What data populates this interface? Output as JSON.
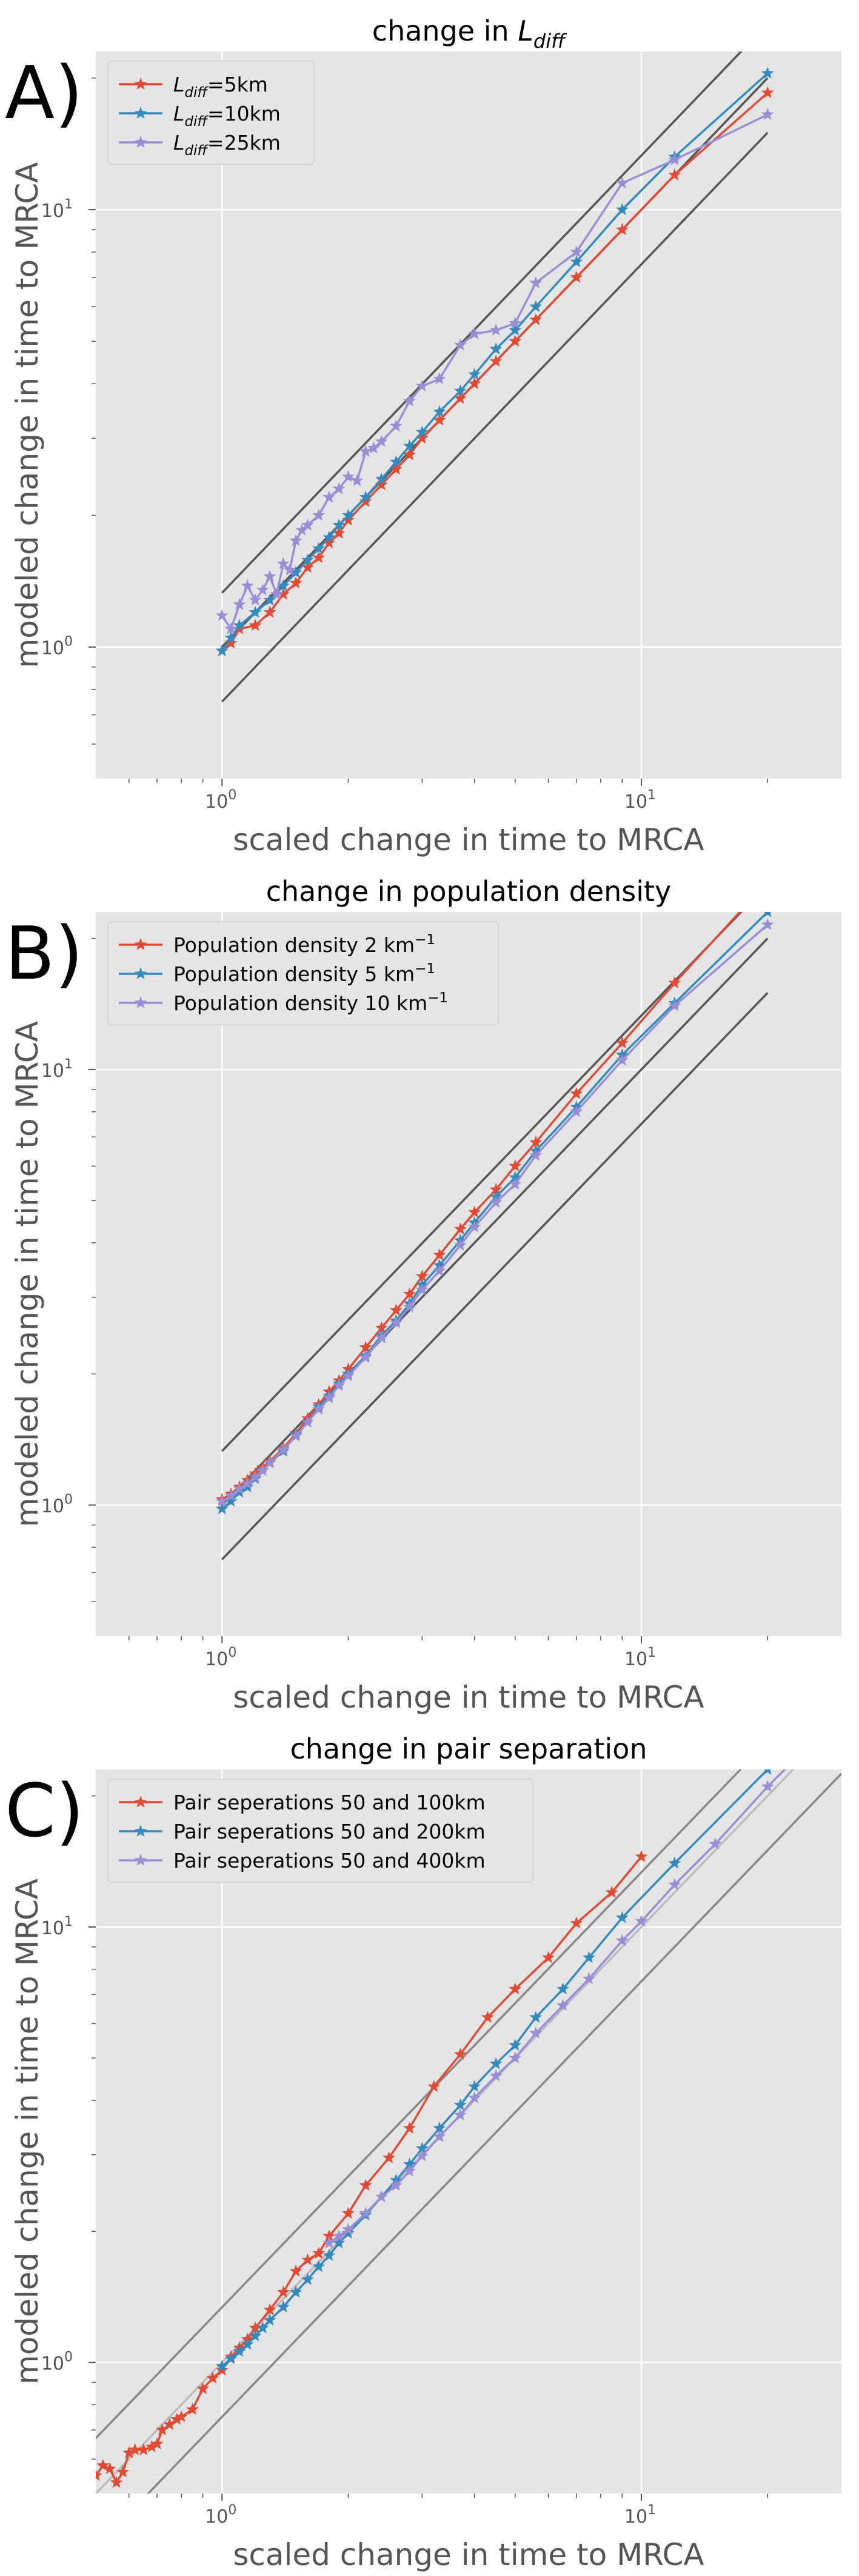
{
  "chart_data": [
    {
      "type": "line",
      "panel_label": "A)",
      "title_base": "change in ",
      "title_math": {
        "main": "L",
        "sub": "diff"
      },
      "xlabel": "scaled change in time to MRCA",
      "ylabel": "modeled change in time to MRCA",
      "xscale": "log",
      "yscale": "log",
      "xlim": [
        0.5,
        30
      ],
      "ylim": [
        0.5,
        23
      ],
      "grid": true,
      "legend_position": "top-left",
      "reference_lines": [
        {
          "x": [
            1,
            20
          ],
          "y": [
            1.33,
            26.6
          ]
        },
        {
          "x": [
            1,
            20
          ],
          "y": [
            1,
            20
          ]
        },
        {
          "x": [
            1,
            20
          ],
          "y": [
            0.75,
            15
          ]
        }
      ],
      "series": [
        {
          "name": "=5km",
          "name_math": {
            "main": "L",
            "sub": "diff"
          },
          "color": "#E24A33",
          "x": [
            1.0,
            1.05,
            1.1,
            1.2,
            1.3,
            1.4,
            1.5,
            1.6,
            1.7,
            1.8,
            1.9,
            2.0,
            2.2,
            2.4,
            2.6,
            2.8,
            3.0,
            3.3,
            3.7,
            4.0,
            4.5,
            5.0,
            5.6,
            7.0,
            9.0,
            12.0,
            20.0
          ],
          "y": [
            0.98,
            1.02,
            1.1,
            1.12,
            1.2,
            1.32,
            1.4,
            1.52,
            1.6,
            1.73,
            1.82,
            1.95,
            2.15,
            2.35,
            2.55,
            2.75,
            3.0,
            3.3,
            3.7,
            4.0,
            4.5,
            5.0,
            5.6,
            7.0,
            9.0,
            12.0,
            18.5
          ]
        },
        {
          "name": "=10km",
          "name_math": {
            "main": "L",
            "sub": "diff"
          },
          "color": "#348ABD",
          "x": [
            1.0,
            1.05,
            1.1,
            1.2,
            1.3,
            1.4,
            1.5,
            1.6,
            1.7,
            1.8,
            1.9,
            2.0,
            2.2,
            2.4,
            2.6,
            2.8,
            3.0,
            3.3,
            3.7,
            4.0,
            4.5,
            5.0,
            5.6,
            7.0,
            9.0,
            12.0,
            20.0
          ],
          "y": [
            0.98,
            1.05,
            1.12,
            1.2,
            1.28,
            1.38,
            1.48,
            1.58,
            1.68,
            1.78,
            1.9,
            2.0,
            2.2,
            2.42,
            2.65,
            2.88,
            3.1,
            3.45,
            3.85,
            4.2,
            4.8,
            5.3,
            6.0,
            7.6,
            10.0,
            13.2,
            20.5
          ]
        },
        {
          "name": "=25km",
          "name_math": {
            "main": "L",
            "sub": "diff"
          },
          "color": "#988ED5",
          "x": [
            1.0,
            1.05,
            1.1,
            1.15,
            1.2,
            1.25,
            1.3,
            1.35,
            1.4,
            1.45,
            1.5,
            1.55,
            1.6,
            1.7,
            1.8,
            1.9,
            2.0,
            2.1,
            2.2,
            2.3,
            2.4,
            2.6,
            2.8,
            3.0,
            3.3,
            3.7,
            4.0,
            4.5,
            5.0,
            5.6,
            7.0,
            9.0,
            12.0,
            20.0
          ],
          "y": [
            1.18,
            1.1,
            1.25,
            1.38,
            1.28,
            1.35,
            1.45,
            1.32,
            1.55,
            1.5,
            1.75,
            1.85,
            1.9,
            2.0,
            2.2,
            2.3,
            2.45,
            2.4,
            2.8,
            2.85,
            2.95,
            3.2,
            3.65,
            3.95,
            4.1,
            4.9,
            5.2,
            5.3,
            5.5,
            6.8,
            8.0,
            11.5,
            13.0,
            16.5
          ]
        }
      ]
    },
    {
      "type": "line",
      "panel_label": "B)",
      "title": "change in population density",
      "xlabel": "scaled change in time to MRCA",
      "ylabel": "modeled change in time to MRCA",
      "xscale": "log",
      "yscale": "log",
      "xlim": [
        0.5,
        30
      ],
      "ylim": [
        0.5,
        23
      ],
      "grid": true,
      "legend_position": "top-left",
      "reference_lines": [
        {
          "x": [
            1,
            20
          ],
          "y": [
            1.33,
            26.6
          ]
        },
        {
          "x": [
            1,
            20
          ],
          "y": [
            1,
            20
          ]
        },
        {
          "x": [
            1,
            20
          ],
          "y": [
            0.75,
            15
          ]
        }
      ],
      "series": [
        {
          "name": "Population density 2 km",
          "name_sup": "−1",
          "color": "#E24A33",
          "x": [
            1.0,
            1.05,
            1.1,
            1.15,
            1.2,
            1.25,
            1.3,
            1.4,
            1.5,
            1.6,
            1.7,
            1.8,
            1.9,
            2.0,
            2.2,
            2.4,
            2.6,
            2.8,
            3.0,
            3.3,
            3.7,
            4.0,
            4.5,
            5.0,
            5.6,
            7.0,
            9.0,
            12.0,
            20.0
          ],
          "y": [
            1.03,
            1.06,
            1.1,
            1.14,
            1.18,
            1.22,
            1.26,
            1.35,
            1.46,
            1.58,
            1.7,
            1.82,
            1.93,
            2.05,
            2.3,
            2.55,
            2.8,
            3.05,
            3.35,
            3.75,
            4.3,
            4.7,
            5.3,
            6.0,
            6.8,
            8.8,
            11.5,
            15.8,
            27.0
          ]
        },
        {
          "name": "Population density 5 km",
          "name_sup": "−1",
          "color": "#348ABD",
          "x": [
            1.0,
            1.05,
            1.1,
            1.15,
            1.2,
            1.25,
            1.3,
            1.4,
            1.5,
            1.6,
            1.7,
            1.8,
            1.9,
            2.0,
            2.2,
            2.4,
            2.6,
            2.8,
            3.0,
            3.3,
            3.7,
            4.0,
            4.5,
            5.0,
            5.6,
            7.0,
            9.0,
            12.0,
            20.0
          ],
          "y": [
            0.98,
            1.02,
            1.07,
            1.1,
            1.15,
            1.2,
            1.25,
            1.33,
            1.45,
            1.55,
            1.68,
            1.78,
            1.9,
            2.0,
            2.2,
            2.45,
            2.65,
            2.9,
            3.2,
            3.55,
            4.05,
            4.45,
            5.1,
            5.65,
            6.5,
            8.2,
            10.8,
            14.2,
            23.0
          ]
        },
        {
          "name": "Population density 10 km",
          "name_sup": "−1",
          "color": "#988ED5",
          "x": [
            1.0,
            1.05,
            1.1,
            1.15,
            1.2,
            1.25,
            1.3,
            1.4,
            1.5,
            1.6,
            1.7,
            1.8,
            1.9,
            2.0,
            2.2,
            2.4,
            2.6,
            2.8,
            3.0,
            3.3,
            3.7,
            4.0,
            4.5,
            5.0,
            5.6,
            7.0,
            9.0,
            12.0,
            20.0
          ],
          "y": [
            1.02,
            1.05,
            1.09,
            1.12,
            1.16,
            1.2,
            1.25,
            1.34,
            1.44,
            1.55,
            1.66,
            1.76,
            1.88,
            1.98,
            2.18,
            2.42,
            2.62,
            2.85,
            3.12,
            3.45,
            3.95,
            4.35,
            4.95,
            5.45,
            6.35,
            8.0,
            10.5,
            14.0,
            21.5
          ]
        }
      ]
    },
    {
      "type": "line",
      "panel_label": "C)",
      "title": "change in pair separation",
      "xlabel": "scaled change in time to MRCA",
      "ylabel": "modeled change in time to MRCA",
      "xscale": "log",
      "yscale": "log",
      "xlim": [
        0.5,
        30
      ],
      "ylim": [
        0.5,
        23
      ],
      "grid": true,
      "legend_position": "top-left",
      "reference_lines": [
        {
          "x": [
            0.5,
            30
          ],
          "y": [
            0.67,
            40
          ],
          "color": "#888888"
        },
        {
          "x": [
            0.5,
            30
          ],
          "y": [
            0.5,
            30
          ],
          "color": "#bbbbbb"
        },
        {
          "x": [
            0.5,
            30
          ],
          "y": [
            0.375,
            22.5
          ],
          "color": "#888888"
        }
      ],
      "series": [
        {
          "name": "Pair seperations 50 and 100km",
          "color": "#E24A33",
          "x": [
            0.5,
            0.52,
            0.54,
            0.56,
            0.58,
            0.6,
            0.62,
            0.65,
            0.68,
            0.7,
            0.72,
            0.75,
            0.78,
            0.8,
            0.85,
            0.9,
            0.95,
            1.0,
            1.05,
            1.1,
            1.15,
            1.2,
            1.3,
            1.4,
            1.5,
            1.6,
            1.7,
            1.8,
            2.0,
            2.2,
            2.5,
            2.8,
            3.2,
            3.7,
            4.3,
            5.0,
            6.0,
            7.0,
            8.5,
            10.0
          ],
          "y": [
            0.55,
            0.58,
            0.57,
            0.53,
            0.56,
            0.62,
            0.63,
            0.63,
            0.64,
            0.65,
            0.7,
            0.72,
            0.74,
            0.75,
            0.78,
            0.87,
            0.92,
            0.96,
            1.03,
            1.08,
            1.13,
            1.2,
            1.32,
            1.45,
            1.62,
            1.72,
            1.78,
            1.95,
            2.2,
            2.55,
            2.95,
            3.45,
            4.3,
            5.1,
            6.2,
            7.2,
            8.5,
            10.2,
            12.0,
            14.5
          ]
        },
        {
          "name": "Pair seperations 50 and 200km",
          "color": "#348ABD",
          "x": [
            1.0,
            1.05,
            1.1,
            1.15,
            1.2,
            1.25,
            1.3,
            1.4,
            1.5,
            1.6,
            1.7,
            1.8,
            1.9,
            2.0,
            2.2,
            2.4,
            2.6,
            2.8,
            3.0,
            3.3,
            3.7,
            4.0,
            4.5,
            5.0,
            5.6,
            6.5,
            7.5,
            9.0,
            12.0,
            20.0
          ],
          "y": [
            0.98,
            1.02,
            1.06,
            1.1,
            1.15,
            1.2,
            1.25,
            1.34,
            1.45,
            1.55,
            1.66,
            1.76,
            1.88,
            1.98,
            2.18,
            2.4,
            2.62,
            2.85,
            3.1,
            3.45,
            3.9,
            4.3,
            4.85,
            5.35,
            6.2,
            7.2,
            8.5,
            10.5,
            14.0,
            23.0
          ]
        },
        {
          "name": "Pair seperations 50 and 400km",
          "color": "#988ED5",
          "x": [
            1.8,
            1.9,
            2.0,
            2.2,
            2.4,
            2.6,
            2.8,
            3.0,
            3.3,
            3.7,
            4.0,
            4.5,
            5.0,
            5.6,
            6.5,
            7.5,
            9.0,
            10.0,
            12.0,
            15.0,
            20.0,
            30.0
          ],
          "y": [
            1.88,
            1.95,
            2.02,
            2.2,
            2.4,
            2.55,
            2.75,
            2.98,
            3.3,
            3.7,
            4.05,
            4.55,
            5.0,
            5.7,
            6.6,
            7.6,
            9.3,
            10.3,
            12.5,
            15.5,
            21.0,
            31.0
          ]
        }
      ]
    }
  ]
}
